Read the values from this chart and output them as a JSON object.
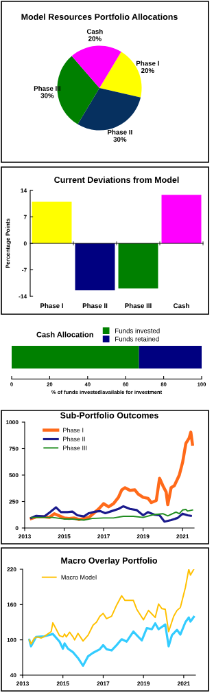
{
  "chart_data": [
    {
      "type": "pie",
      "title": "Model Resources Portfolio Allocations",
      "categories": [
        "Phase I",
        "Phase II",
        "Phase III",
        "Cash"
      ],
      "values": [
        20,
        30,
        30,
        20
      ],
      "value_labels": [
        "20%",
        "30%",
        "30%",
        "20%"
      ],
      "colors": [
        "#ffff00",
        "#06305f",
        "#008000",
        "#ff00ff"
      ]
    },
    {
      "type": "bar",
      "title": "Current Deviations from Model",
      "ylabel": "Percentage Points",
      "categories": [
        "Phase I",
        "Phase II",
        "Phase III",
        "Cash"
      ],
      "values": [
        11,
        -12.4,
        -11.9,
        12.8
      ],
      "colors": [
        "#ffff00",
        "#000080",
        "#008000",
        "#ff00ff"
      ],
      "ylim": [
        -14,
        14
      ],
      "yticks": [
        -14,
        -7,
        0,
        7,
        14
      ]
    },
    {
      "type": "bar",
      "orientation": "horizontal",
      "stacked": true,
      "title": "Cash Allocation",
      "xlabel": "% of funds invested/available for investment",
      "categories": [
        null
      ],
      "series": [
        {
          "name": "Funds invested",
          "color": "#008000",
          "values": [
            67
          ]
        },
        {
          "name": "Funds retained",
          "color": "#000080",
          "values": [
            33
          ]
        }
      ],
      "xlim": [
        0,
        100
      ],
      "xticks": [
        0,
        20,
        40,
        60,
        80,
        100
      ],
      "tick_labels": "x",
      "legend": "top"
    },
    {
      "type": "line",
      "title": "Sub-Portfolio Outcomes",
      "legend": "top left",
      "xlim": [
        "2013",
        "2021-08"
      ],
      "xticks": [
        "2013",
        "2015",
        "2017",
        "2019",
        "2021"
      ],
      "ylim": [
        0,
        1000
      ],
      "yticks": [
        0,
        250,
        500,
        750,
        1000
      ],
      "series": [
        {
          "name": "Phase I",
          "color": "#ff6a1a",
          "x": [
            "2013-05",
            "2013-08",
            "2014-01",
            "2014-04",
            "2014-07",
            "2014-10",
            "2015-01",
            "2015-04",
            "2015-07",
            "2015-10",
            "2016-01",
            "2016-04",
            "2016-07",
            "2016-10",
            "2017-01",
            "2017-04",
            "2017-07",
            "2017-10",
            "2017-12",
            "2018-02",
            "2018-05",
            "2018-08",
            "2018-10",
            "2019-01",
            "2019-04",
            "2019-06",
            "2019-09",
            "2019-11",
            "2020-01",
            "2020-03",
            "2020-04",
            "2020-06",
            "2020-08",
            "2020-11",
            "2021-01",
            "2021-03",
            "2021-05",
            "2021-06",
            "2021-07"
          ],
          "values": [
            90,
            105,
            105,
            100,
            135,
            115,
            95,
            90,
            95,
            80,
            90,
            100,
            140,
            180,
            230,
            200,
            230,
            290,
            360,
            380,
            355,
            360,
            320,
            290,
            280,
            240,
            260,
            470,
            400,
            340,
            220,
            380,
            400,
            500,
            620,
            800,
            850,
            905,
            790
          ]
        },
        {
          "name": "Phase II",
          "color": "#1a1a8c",
          "x": [
            "2013-05",
            "2013-08",
            "2014-01",
            "2014-04",
            "2014-08",
            "2014-11",
            "2015-03",
            "2015-06",
            "2015-09",
            "2016-01",
            "2016-04",
            "2016-08",
            "2016-11",
            "2017-02",
            "2017-06",
            "2017-10",
            "2018-01",
            "2018-05",
            "2018-09",
            "2019-01",
            "2019-04",
            "2019-08",
            "2019-11",
            "2020-02",
            "2020-06",
            "2020-10",
            "2021-01",
            "2021-04",
            "2021-06"
          ],
          "values": [
            95,
            115,
            110,
            145,
            195,
            150,
            150,
            155,
            120,
            110,
            140,
            155,
            160,
            140,
            160,
            180,
            205,
            180,
            170,
            120,
            150,
            125,
            120,
            60,
            75,
            95,
            135,
            120,
            115
          ]
        },
        {
          "name": "Phase III",
          "color": "#1f8c1f",
          "x": [
            "2013-05",
            "2013-10",
            "2014-06",
            "2015-01",
            "2015-06",
            "2016-01",
            "2016-06",
            "2017-01",
            "2017-07",
            "2018-01",
            "2018-07",
            "2019-01",
            "2019-07",
            "2020-01",
            "2020-04",
            "2020-09",
            "2020-11",
            "2021-01",
            "2021-03",
            "2021-04",
            "2021-07"
          ],
          "values": [
            100,
            100,
            100,
            85,
            85,
            75,
            90,
            95,
            95,
            110,
            110,
            100,
            125,
            135,
            115,
            150,
            135,
            170,
            175,
            160,
            170
          ]
        }
      ]
    },
    {
      "type": "line",
      "title": "Macro Overlay Portfolio",
      "legend": "top left",
      "xlim": [
        "2013",
        "2021-08"
      ],
      "xticks": [
        "2013",
        "2015",
        "2017",
        "2019",
        "2021"
      ],
      "ylim": [
        40,
        220
      ],
      "yticks": [
        40,
        100,
        160,
        220
      ],
      "series": [
        {
          "color": "#33ccff",
          "x": [
            "2013-05",
            "2013-06",
            "2013-09",
            "2014-02",
            "2014-07",
            "2014-11",
            "2015-01",
            "2015-02",
            "2015-04",
            "2015-07",
            "2015-10",
            "2016-01",
            "2016-04",
            "2016-07",
            "2016-11",
            "2017-01",
            "2017-03",
            "2017-06",
            "2017-09",
            "2017-12",
            "2018-03",
            "2018-07",
            "2018-09",
            "2018-12",
            "2019-03",
            "2019-06",
            "2019-08",
            "2019-10",
            "2020-02",
            "2020-04",
            "2020-06",
            "2020-09",
            "2020-11",
            "2021-02",
            "2021-04",
            "2021-05",
            "2021-07"
          ],
          "values": [
            100,
            89,
            105,
            106,
            110,
            97,
            85,
            94,
            85,
            79,
            69,
            56,
            72,
            78,
            84,
            91,
            84,
            82,
            91,
            101,
            97,
            114,
            108,
            99,
            120,
            118,
            128,
            118,
            126,
            89,
            108,
            117,
            109,
            130,
            138,
            131,
            139
          ]
        },
        {
          "name": "Macro Model",
          "color": "#ffc000",
          "x": [
            "2013-05",
            "2013-06",
            "2013-08",
            "2013-10",
            "2013-12",
            "2014-02",
            "2014-04",
            "2014-06",
            "2014-07",
            "2014-09",
            "2014-11",
            "2015-01",
            "2015-02",
            "2015-03",
            "2015-05",
            "2015-07",
            "2015-08",
            "2015-10",
            "2016-01",
            "2016-04",
            "2016-07",
            "2016-09",
            "2016-11",
            "2017-01",
            "2017-03",
            "2017-06",
            "2017-09",
            "2017-12",
            "2018-02",
            "2018-07",
            "2018-09",
            "2019-01",
            "2019-04",
            "2019-06",
            "2019-08",
            "2019-10",
            "2019-12",
            "2020-02",
            "2020-04",
            "2020-07",
            "2020-09",
            "2020-11",
            "2021-02",
            "2021-04",
            "2021-05",
            "2021-07"
          ],
          "values": [
            100,
            93,
            103,
            105,
            103,
            106,
            110,
            114,
            129,
            118,
            107,
            105,
            110,
            105,
            113,
            105,
            100,
            111,
            98,
            108,
            125,
            130,
            140,
            145,
            136,
            140,
            159,
            175,
            167,
            167,
            152,
            134,
            150,
            144,
            138,
            161,
            153,
            152,
            114,
            140,
            150,
            155,
            189,
            220,
            210,
            220
          ]
        }
      ]
    }
  ]
}
